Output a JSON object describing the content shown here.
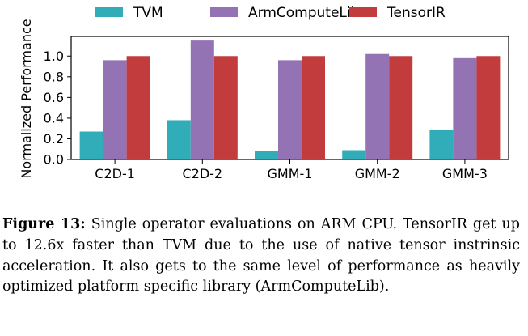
{
  "chart_data": {
    "type": "bar",
    "categories": [
      "C2D-1",
      "C2D-2",
      "GMM-1",
      "GMM-2",
      "GMM-3"
    ],
    "series": [
      {
        "name": "TVM",
        "color": "#31adb9",
        "values": [
          0.27,
          0.38,
          0.08,
          0.09,
          0.29
        ]
      },
      {
        "name": "ArmComputeLib",
        "color": "#9473b5",
        "values": [
          0.96,
          1.15,
          0.96,
          1.02,
          0.98
        ]
      },
      {
        "name": "TensorIR",
        "color": "#c23b3d",
        "values": [
          1.0,
          1.0,
          1.0,
          1.0,
          1.0
        ]
      }
    ],
    "ylabel": "Normalized Performance",
    "xlabel": "",
    "ylim": [
      0,
      1.19
    ],
    "yticks": [
      "0.0",
      "0.2",
      "0.4",
      "0.6",
      "0.8",
      "1.0"
    ],
    "legend_position": "top",
    "grid": false
  },
  "caption": {
    "label": "Figure 13:",
    "text": "Single operator evaluations on ARM CPU. TensorIR get up to 12.6x faster than TVM due to the use of native tensor instrinsic acceleration. It also gets to the same level of performance as heavily optimized platform specific library (ArmComputeLib)."
  }
}
